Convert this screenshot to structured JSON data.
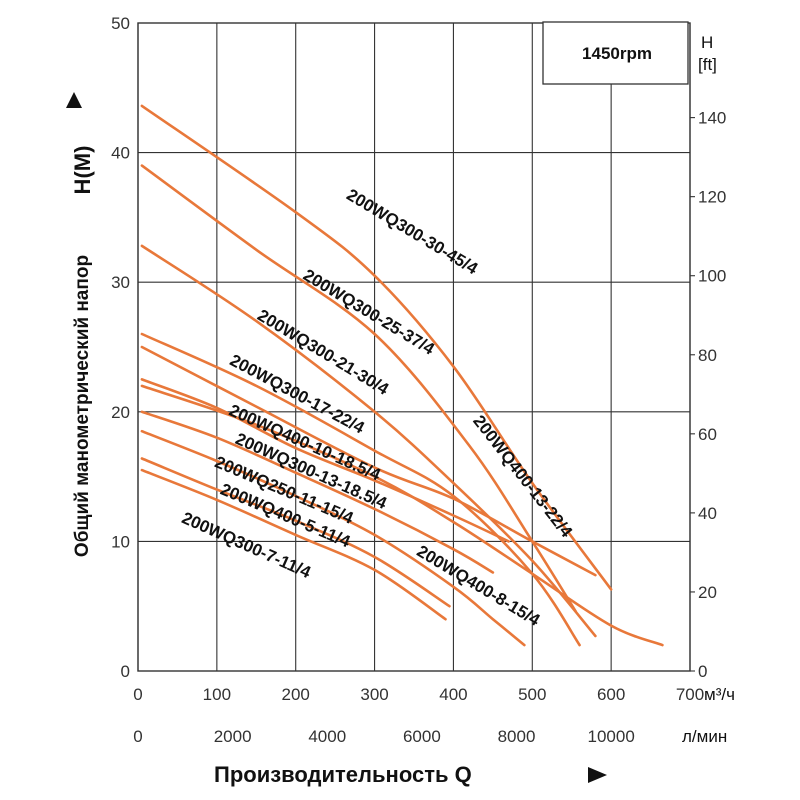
{
  "chart_data": {
    "type": "line",
    "rpm_label": "1450rpm",
    "x_axis": {
      "label": "Производительность",
      "symbol": "Q",
      "unit_primary": "м³/ч",
      "unit_secondary": "л/мин",
      "range": [
        0,
        700
      ],
      "ticks": [
        0,
        100,
        200,
        300,
        400,
        500,
        600,
        700
      ],
      "secondary_ticks": [
        0,
        2000,
        4000,
        6000,
        8000,
        10000
      ],
      "secondary_tick_values_m3h": [
        0,
        120,
        240,
        360,
        480,
        600
      ]
    },
    "y_axis": {
      "label": "Общий манометрический напор",
      "symbol": "H(М)",
      "range": [
        0,
        50
      ],
      "ticks": [
        0,
        10,
        20,
        30,
        40,
        50
      ]
    },
    "y2_axis": {
      "label": "H",
      "unit": "[ft]",
      "ticks": [
        0,
        20,
        40,
        60,
        80,
        100,
        120,
        140
      ],
      "tick_values_m": [
        0,
        6.1,
        12.2,
        18.3,
        24.4,
        30.5,
        36.6,
        42.7
      ]
    },
    "grid": true,
    "series": [
      {
        "name": "200WQ300-30-45/4",
        "points": [
          [
            5,
            43.6
          ],
          [
            200,
            35.4
          ],
          [
            300,
            30.5
          ],
          [
            400,
            23.5
          ],
          [
            500,
            14.5
          ],
          [
            600,
            6.3
          ]
        ]
      },
      {
        "name": "200WQ300-25-37/4",
        "points": [
          [
            5,
            39.0
          ],
          [
            150,
            32.5
          ],
          [
            300,
            26.0
          ],
          [
            420,
            17.4
          ],
          [
            500,
            10.0
          ],
          [
            555,
            4.6
          ]
        ]
      },
      {
        "name": "200WQ300-21-30/4",
        "points": [
          [
            5,
            32.8
          ],
          [
            150,
            27.0
          ],
          [
            300,
            20.0
          ],
          [
            400,
            14.5
          ],
          [
            500,
            8.5
          ],
          [
            580,
            2.7
          ]
        ]
      },
      {
        "name": "200WQ300-17-22/4",
        "points": [
          [
            5,
            26.0
          ],
          [
            150,
            22.0
          ],
          [
            300,
            17.0
          ],
          [
            400,
            13.5
          ],
          [
            500,
            7.5
          ],
          [
            560,
            2.0
          ]
        ]
      },
      {
        "name": "200WQ400-10-18.5/4",
        "points": [
          [
            5,
            22.5
          ],
          [
            100,
            20.3
          ],
          [
            200,
            17.2
          ],
          [
            300,
            14.7
          ],
          [
            400,
            12.0
          ],
          [
            470,
            10.0
          ]
        ]
      },
      {
        "name": "200WQ300-13-18.5/4",
        "points": [
          [
            5,
            25.0
          ],
          [
            150,
            20.4
          ],
          [
            300,
            15.7
          ],
          [
            400,
            13.3
          ],
          [
            500,
            10.0
          ],
          [
            580,
            7.4
          ]
        ]
      },
      {
        "name": "200WQ250-11-15/4",
        "points": [
          [
            5,
            20.0
          ],
          [
            100,
            18.0
          ],
          [
            200,
            15.3
          ],
          [
            300,
            12.5
          ],
          [
            400,
            9.4
          ],
          [
            450,
            7.6
          ]
        ]
      },
      {
        "name": "200WQ400-5-11/4",
        "points": [
          [
            5,
            16.4
          ],
          [
            100,
            14.0
          ],
          [
            200,
            11.6
          ],
          [
            300,
            8.8
          ],
          [
            395,
            5.0
          ]
        ]
      },
      {
        "name": "200WQ300-7-11/4",
        "points": [
          [
            5,
            15.5
          ],
          [
            100,
            13.2
          ],
          [
            200,
            10.5
          ],
          [
            300,
            7.8
          ],
          [
            390,
            4.0
          ]
        ]
      },
      {
        "name": "200WQ400-13-22/4",
        "points": [
          [
            5,
            22.0
          ],
          [
            150,
            19.0
          ],
          [
            300,
            15.0
          ],
          [
            400,
            11.5
          ],
          [
            500,
            7.5
          ],
          [
            600,
            3.5
          ],
          [
            665,
            2.0
          ]
        ]
      },
      {
        "name": "200WQ400-8-15/4",
        "points": [
          [
            5,
            18.5
          ],
          [
            100,
            16.2
          ],
          [
            200,
            13.5
          ],
          [
            300,
            10.5
          ],
          [
            400,
            6.5
          ],
          [
            450,
            4.0
          ],
          [
            490,
            2.0
          ]
        ]
      }
    ],
    "labels": [
      {
        "text": "200WQ300-30-45/4",
        "x": 263,
        "y": 36.5,
        "angle": 31
      },
      {
        "text": "200WQ300-25-37/4",
        "x": 208,
        "y": 30.3,
        "angle": 31
      },
      {
        "text": "200WQ300-21-30/4",
        "x": 150,
        "y": 27.2,
        "angle": 31
      },
      {
        "text": "200WQ300-17-22/4",
        "x": 115,
        "y": 23.7,
        "angle": 28
      },
      {
        "text": "200WQ400-10-18.5/4",
        "x": 114,
        "y": 19.8,
        "angle": 24
      },
      {
        "text": "200WQ300-13-18.5/4",
        "x": 122,
        "y": 17.6,
        "angle": 24
      },
      {
        "text": "200WQ250-11-15/4",
        "x": 96,
        "y": 15.8,
        "angle": 23
      },
      {
        "text": "200WQ400-5-11/4",
        "x": 103,
        "y": 13.7,
        "angle": 23
      },
      {
        "text": "200WQ300-7-11/4",
        "x": 54,
        "y": 11.5,
        "angle": 24
      },
      {
        "text": "200WQ400-13-22/4",
        "x": 424,
        "y": 19.3,
        "angle": 52
      },
      {
        "text": "200WQ400-8-15/4",
        "x": 352,
        "y": 9.0,
        "angle": 31
      }
    ],
    "colors": {
      "curve": "#E8783A",
      "grid": "#333333",
      "axis": "#333333"
    }
  }
}
